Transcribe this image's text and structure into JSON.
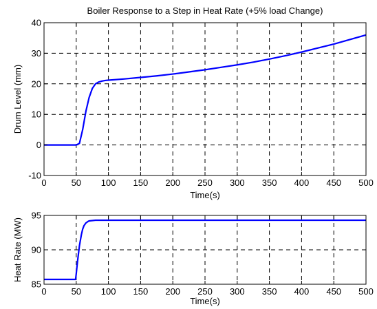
{
  "chart_data": [
    {
      "type": "line",
      "title": "Boiler Response to a Step in Heat Rate (+5% load Change)",
      "xlabel": "Time(s)",
      "ylabel": "Drum Level (mm)",
      "xlim": [
        0,
        500
      ],
      "ylim": [
        -10,
        40
      ],
      "xticks": [
        0,
        50,
        100,
        150,
        200,
        250,
        300,
        350,
        400,
        450,
        500
      ],
      "yticks": [
        -10,
        0,
        10,
        20,
        30,
        40
      ],
      "grid": true,
      "series": [
        {
          "color": "#0000ff",
          "x": [
            0,
            50,
            55,
            60,
            65,
            70,
            75,
            80,
            85,
            90,
            95,
            100,
            125,
            150,
            175,
            200,
            225,
            250,
            275,
            300,
            325,
            350,
            375,
            400,
            425,
            450,
            475,
            500
          ],
          "y": [
            0,
            0,
            0.5,
            5,
            11,
            15.5,
            18.5,
            20,
            20.6,
            20.9,
            21.1,
            21.2,
            21.6,
            22.1,
            22.6,
            23.2,
            23.9,
            24.6,
            25.4,
            26.2,
            27.1,
            28.1,
            29.2,
            30.4,
            31.7,
            33.0,
            34.5,
            36.0
          ]
        }
      ]
    },
    {
      "type": "line",
      "title": "",
      "xlabel": "Time(s)",
      "ylabel": "Heat Rate (MW)",
      "xlim": [
        0,
        500
      ],
      "ylim": [
        85,
        95
      ],
      "xticks": [
        0,
        50,
        100,
        150,
        200,
        250,
        300,
        350,
        400,
        450,
        500
      ],
      "yticks": [
        85,
        90,
        95
      ],
      "grid": true,
      "series": [
        {
          "color": "#0000ff",
          "x": [
            0,
            49,
            50,
            52,
            55,
            58,
            60,
            62,
            65,
            68,
            70,
            75,
            80,
            100,
            200,
            300,
            400,
            500
          ],
          "y": [
            85.7,
            85.7,
            86.5,
            88.3,
            90.6,
            92.2,
            93.0,
            93.5,
            93.9,
            94.1,
            94.2,
            94.25,
            94.3,
            94.3,
            94.3,
            94.3,
            94.3,
            94.3
          ]
        }
      ]
    }
  ]
}
